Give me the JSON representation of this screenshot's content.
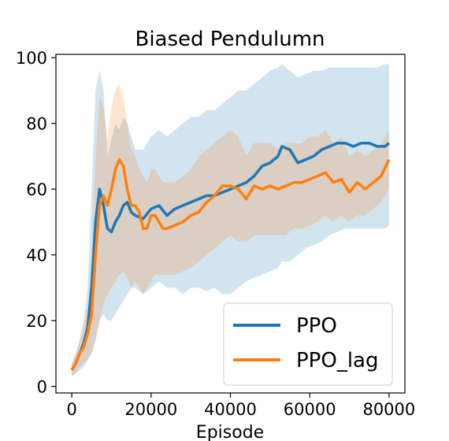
{
  "chart_data": {
    "type": "line",
    "title": "Biased Pendulumn",
    "xlabel": "Episode",
    "ylabel": "",
    "xlim": [
      -4000,
      84000
    ],
    "ylim": [
      -2,
      101
    ],
    "grid": false,
    "legend_position": "bottom-right",
    "x_ticks": [
      0,
      20000,
      40000,
      60000,
      80000
    ],
    "x_tick_labels": [
      "0",
      "20000",
      "40000",
      "60000",
      "80000"
    ],
    "y_ticks": [
      0,
      20,
      40,
      60,
      80,
      100
    ],
    "y_tick_labels": [
      "0",
      "20",
      "40",
      "60",
      "80",
      "100"
    ],
    "series": [
      {
        "name": "PPO",
        "color": "#1f77b4",
        "band_color": "#1f77b4",
        "x": [
          0,
          1000,
          2000,
          3000,
          4000,
          5000,
          6000,
          7000,
          8000,
          9000,
          10000,
          11000,
          12000,
          13000,
          14000,
          15000,
          16000,
          18000,
          20000,
          22000,
          24000,
          26000,
          28000,
          30000,
          32000,
          34000,
          36000,
          38000,
          40000,
          42000,
          44000,
          46000,
          48000,
          50000,
          52000,
          53000,
          55000,
          57000,
          59000,
          61000,
          63000,
          65000,
          67000,
          69000,
          71000,
          73000,
          75000,
          77000,
          79000,
          80000
        ],
        "mean": [
          5,
          7,
          10,
          13,
          18,
          30,
          50,
          60,
          55,
          48,
          47,
          50,
          52,
          55,
          56,
          53,
          52,
          51,
          54,
          55,
          52,
          54,
          55,
          56,
          57,
          58,
          58,
          59,
          60,
          61,
          62,
          64,
          67,
          68,
          70,
          73,
          72,
          68,
          69,
          70,
          72,
          73,
          74,
          74,
          73,
          74,
          74,
          73,
          73,
          74
        ],
        "lower": [
          3,
          4,
          5,
          6,
          8,
          10,
          14,
          20,
          22,
          20,
          20,
          22,
          24,
          26,
          28,
          30,
          30,
          28,
          30,
          32,
          30,
          30,
          28,
          30,
          30,
          29,
          30,
          28,
          28,
          30,
          32,
          33,
          34,
          35,
          36,
          38,
          38,
          40,
          42,
          43,
          44,
          46,
          47,
          48,
          48,
          48,
          48,
          48,
          48,
          49
        ],
        "upper": [
          7,
          10,
          14,
          20,
          30,
          60,
          90,
          96,
          90,
          70,
          75,
          80,
          78,
          82,
          80,
          76,
          72,
          72,
          76,
          78,
          76,
          78,
          80,
          82,
          82,
          84,
          84,
          86,
          88,
          90,
          90,
          92,
          94,
          96,
          97,
          98,
          96,
          94,
          95,
          96,
          96,
          97,
          97,
          97,
          97,
          97,
          97,
          97,
          98,
          98
        ]
      },
      {
        "name": "PPO_lag",
        "color": "#ff7f0e",
        "band_color": "#ff7f0e",
        "x": [
          0,
          1000,
          2000,
          3000,
          4000,
          5000,
          6000,
          7000,
          8000,
          9000,
          10000,
          11000,
          12000,
          13000,
          14000,
          15000,
          16000,
          17000,
          18000,
          19000,
          20000,
          21000,
          22000,
          23000,
          24000,
          26000,
          28000,
          30000,
          32000,
          34000,
          36000,
          38000,
          40000,
          42000,
          44000,
          46000,
          48000,
          50000,
          52000,
          54000,
          56000,
          58000,
          60000,
          62000,
          64000,
          66000,
          68000,
          70000,
          72000,
          74000,
          76000,
          78000,
          80000
        ],
        "mean": [
          5,
          7,
          10,
          12,
          16,
          22,
          40,
          55,
          58,
          55,
          60,
          66,
          69,
          67,
          60,
          55,
          55,
          53,
          48,
          48,
          52,
          52,
          50,
          48,
          48,
          49,
          50,
          52,
          53,
          56,
          58,
          61,
          61,
          60,
          57,
          61,
          60,
          61,
          60,
          61,
          62,
          62,
          63,
          64,
          65,
          62,
          63,
          59,
          62,
          60,
          62,
          64,
          69
        ],
        "lower": [
          3,
          4,
          6,
          7,
          8,
          10,
          14,
          20,
          25,
          28,
          30,
          32,
          34,
          35,
          33,
          30,
          32,
          30,
          28,
          30,
          32,
          34,
          34,
          34,
          34,
          34,
          35,
          36,
          38,
          40,
          42,
          44,
          46,
          44,
          44,
          46,
          46,
          46,
          46,
          46,
          48,
          48,
          49,
          50,
          52,
          50,
          52,
          50,
          52,
          52,
          54,
          56,
          60
        ],
        "upper": [
          7,
          10,
          14,
          18,
          24,
          40,
          70,
          88,
          85,
          75,
          85,
          90,
          92,
          88,
          80,
          72,
          70,
          66,
          64,
          62,
          66,
          66,
          64,
          62,
          62,
          62,
          64,
          66,
          70,
          72,
          74,
          76,
          78,
          76,
          70,
          74,
          74,
          74,
          72,
          74,
          74,
          74,
          76,
          76,
          78,
          74,
          76,
          70,
          72,
          70,
          72,
          74,
          78
        ]
      }
    ]
  }
}
